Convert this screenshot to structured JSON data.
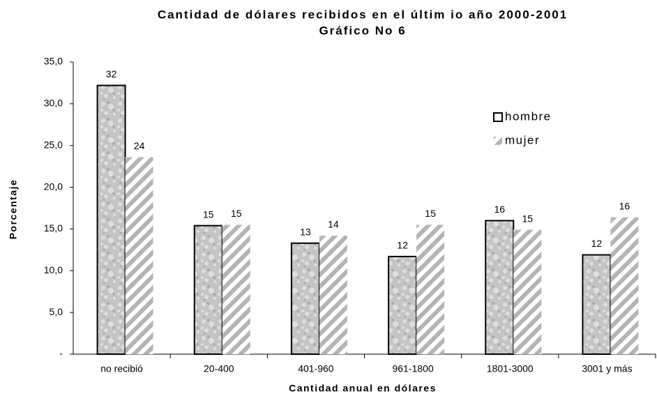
{
  "chart_data": {
    "type": "bar",
    "title": "Cantidad de dólares recibidos en el últim io año 2000-2001",
    "subtitle": "Gráfico No 6",
    "x_label": "Cantidad anual en dólares",
    "y_label": "Porcentaje",
    "categories": [
      "no recibió",
      "20-400",
      "401-960",
      "961-1800",
      "1801-3000",
      "3001 y más"
    ],
    "series": [
      {
        "name": "hombre",
        "color": "#c4c4c4",
        "values": [
          32.2,
          15.4,
          13.3,
          11.7,
          16.0,
          11.9
        ],
        "value_labels": [
          "32",
          "15",
          "13",
          "12",
          "16",
          "12"
        ]
      },
      {
        "name": "mujer",
        "color": "#b4b4b4",
        "values": [
          23.6,
          15.5,
          14.2,
          15.5,
          14.9,
          16.4
        ],
        "value_labels": [
          "24",
          "15",
          "14",
          "15",
          "15",
          "16"
        ]
      }
    ],
    "ylim": [
      0,
      35
    ],
    "yticks": [
      {
        "value": 0,
        "label": "-"
      },
      {
        "value": 5,
        "label": "5,0"
      },
      {
        "value": 10,
        "label": "10,0"
      },
      {
        "value": 15,
        "label": "15,0"
      },
      {
        "value": 20,
        "label": "20,0"
      },
      {
        "value": 25,
        "label": "25,0"
      },
      {
        "value": 30,
        "label": "30,0"
      },
      {
        "value": 35,
        "label": "35,0"
      }
    ],
    "legend": "upper right"
  }
}
